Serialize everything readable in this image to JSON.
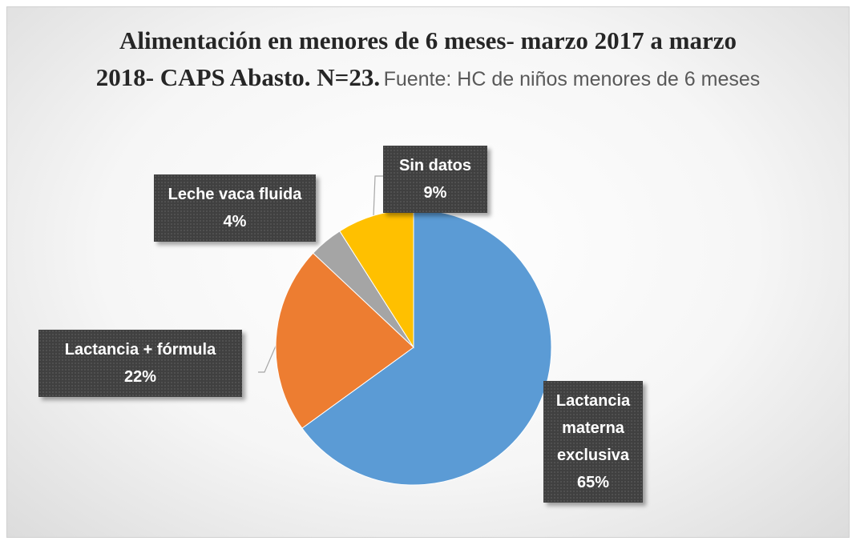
{
  "chart_data": {
    "type": "pie",
    "title": "Alimentación en menores de 6 meses- marzo 2017 a marzo 2018- CAPS Abasto. N=23.",
    "subtitle": "Fuente: HC de niños menores de 6 meses",
    "categories": [
      "Lactancia materna exclusiva",
      "Lactancia + fórmula",
      "Leche vaca fluida",
      "Sin datos"
    ],
    "values": [
      65,
      22,
      4,
      9
    ],
    "value_labels": [
      "65%",
      "22%",
      "4%",
      "9%"
    ],
    "colors": [
      "#5b9bd5",
      "#ed7d31",
      "#a5a5a5",
      "#ffc000"
    ]
  }
}
